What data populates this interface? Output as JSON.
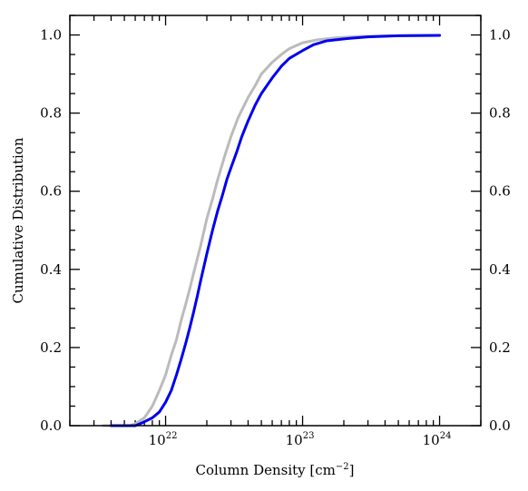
{
  "chart_data": {
    "type": "line",
    "title": "",
    "xlabel": "Column Density [cm",
    "xlabel_exponent": "−2",
    "xlabel_close": "]",
    "ylabel": "Cumulative Distribution",
    "x_scale": "log",
    "xlim": [
      2e+21,
      2e+24
    ],
    "ylim": [
      0.0,
      1.05
    ],
    "grid": false,
    "legend": null,
    "x_ticks": [
      {
        "value": 1e+22,
        "base": "10",
        "exp": "22"
      },
      {
        "value": 1e+23,
        "base": "10",
        "exp": "23"
      },
      {
        "value": 1e+24,
        "base": "10",
        "exp": "24"
      }
    ],
    "y_ticks": [
      {
        "value": 0.0,
        "label": "0.0"
      },
      {
        "value": 0.2,
        "label": "0.2"
      },
      {
        "value": 0.4,
        "label": "0.4"
      },
      {
        "value": 0.6,
        "label": "0.6"
      },
      {
        "value": 0.8,
        "label": "0.8"
      },
      {
        "value": 1.0,
        "label": "1.0"
      }
    ],
    "series": [
      {
        "color": "#0000ee",
        "points": [
          [
            4e+21,
            0.0
          ],
          [
            6e+21,
            0.0
          ],
          [
            6.5e+21,
            0.005
          ],
          [
            7e+21,
            0.01
          ],
          [
            8e+21,
            0.02
          ],
          [
            9e+21,
            0.035
          ],
          [
            1e+22,
            0.06
          ],
          [
            1.1e+22,
            0.09
          ],
          [
            1.2e+22,
            0.13
          ],
          [
            1.3e+22,
            0.17
          ],
          [
            1.4e+22,
            0.21
          ],
          [
            1.5e+22,
            0.25
          ],
          [
            1.6e+22,
            0.29
          ],
          [
            1.7e+22,
            0.33
          ],
          [
            1.8e+22,
            0.37
          ],
          [
            2e+22,
            0.44
          ],
          [
            2.2e+22,
            0.5
          ],
          [
            2.4e+22,
            0.55
          ],
          [
            2.6e+22,
            0.59
          ],
          [
            2.8e+22,
            0.63
          ],
          [
            3e+22,
            0.66
          ],
          [
            3.3e+22,
            0.7
          ],
          [
            3.6e+22,
            0.74
          ],
          [
            4e+22,
            0.78
          ],
          [
            4.5e+22,
            0.82
          ],
          [
            5e+22,
            0.85
          ],
          [
            6e+22,
            0.89
          ],
          [
            7e+22,
            0.92
          ],
          [
            8e+22,
            0.94
          ],
          [
            1e+23,
            0.96
          ],
          [
            1.2e+23,
            0.975
          ],
          [
            1.5e+23,
            0.985
          ],
          [
            2e+23,
            0.99
          ],
          [
            3e+23,
            0.995
          ],
          [
            5e+23,
            0.998
          ],
          [
            1e+24,
            0.999
          ]
        ]
      },
      {
        "color": "#bbbbbb",
        "points": [
          [
            3.5e+21,
            0.0
          ],
          [
            5.5e+21,
            0.0
          ],
          [
            6e+21,
            0.005
          ],
          [
            7e+21,
            0.02
          ],
          [
            8e+21,
            0.05
          ],
          [
            9e+21,
            0.09
          ],
          [
            1e+22,
            0.13
          ],
          [
            1.1e+22,
            0.18
          ],
          [
            1.2e+22,
            0.22
          ],
          [
            1.3e+22,
            0.27
          ],
          [
            1.4e+22,
            0.31
          ],
          [
            1.5e+22,
            0.35
          ],
          [
            1.6e+22,
            0.39
          ],
          [
            1.8e+22,
            0.46
          ],
          [
            2e+22,
            0.53
          ],
          [
            2.2e+22,
            0.58
          ],
          [
            2.4e+22,
            0.63
          ],
          [
            2.7e+22,
            0.69
          ],
          [
            3e+22,
            0.74
          ],
          [
            3.4e+22,
            0.79
          ],
          [
            4e+22,
            0.84
          ],
          [
            4.5e+22,
            0.87
          ],
          [
            5e+22,
            0.9
          ],
          [
            6e+22,
            0.93
          ],
          [
            7e+22,
            0.95
          ],
          [
            8e+22,
            0.965
          ],
          [
            1e+23,
            0.98
          ],
          [
            1.3e+23,
            0.988
          ],
          [
            1.8e+23,
            0.993
          ],
          [
            2.5e+23,
            0.996
          ],
          [
            5e+23,
            0.998
          ],
          [
            1e+24,
            0.999
          ]
        ]
      }
    ]
  }
}
